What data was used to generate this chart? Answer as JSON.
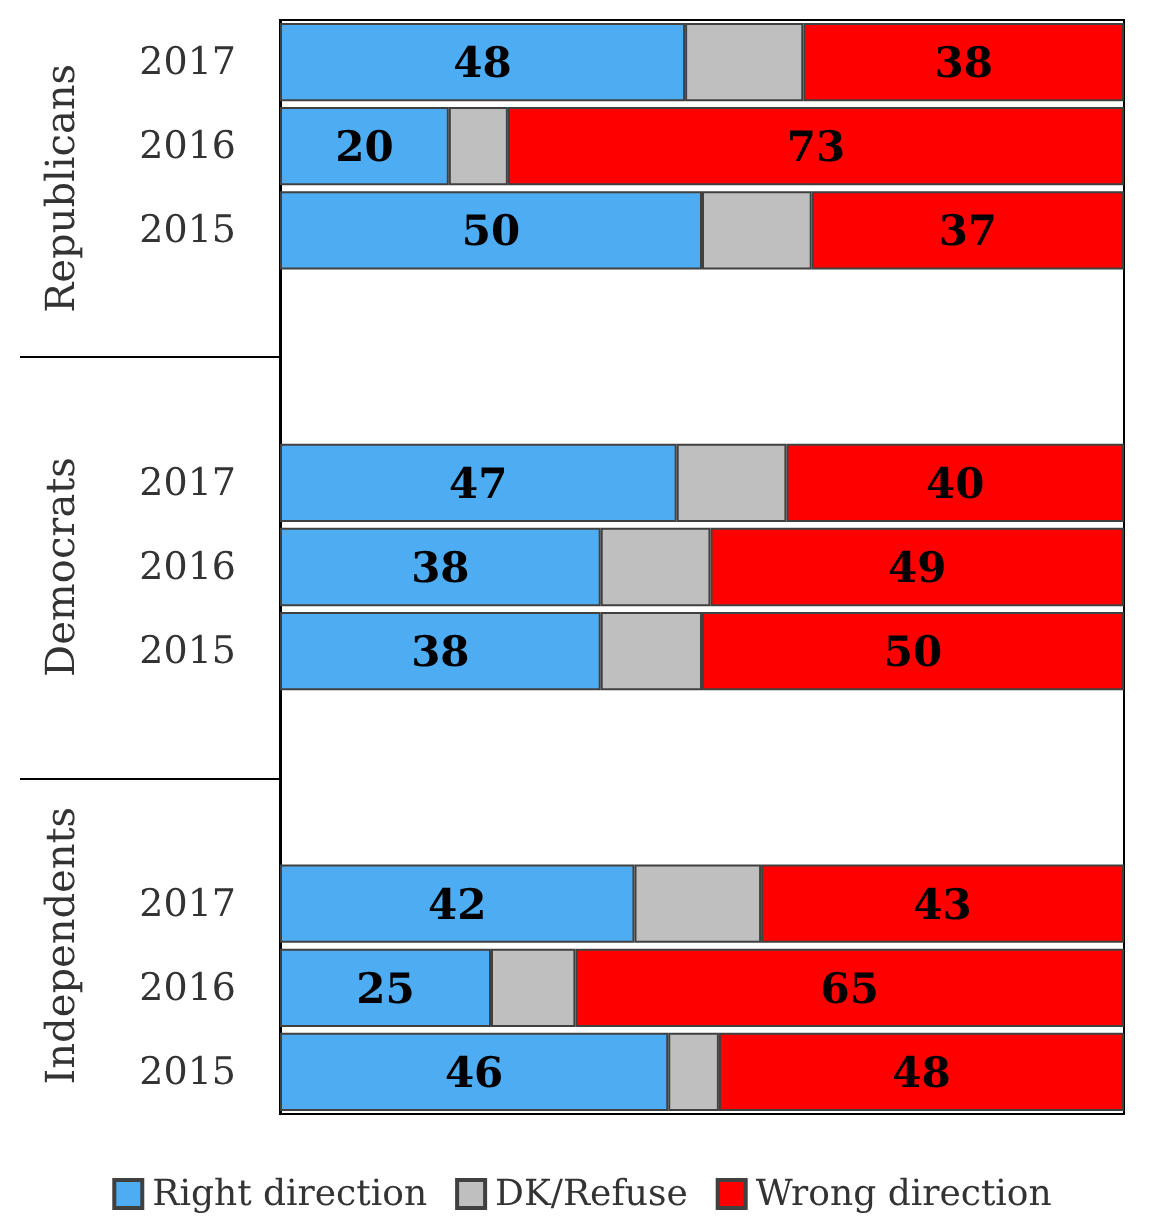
{
  "chart_data": {
    "type": "bar",
    "orientation": "horizontal",
    "stacked": true,
    "categories": [
      "2017",
      "2016",
      "2015",
      null,
      null,
      "2017",
      "2016",
      "2015",
      null,
      null,
      "2017",
      "2016",
      "2015"
    ],
    "series": [
      {
        "name": "Right direction",
        "color": "#4dacf2",
        "values": [
          48,
          20,
          50,
          null,
          null,
          47,
          38,
          38,
          null,
          null,
          42,
          25,
          46
        ],
        "value_labels": [
          "48",
          "20",
          "50",
          null,
          null,
          "47",
          "38",
          "38",
          null,
          null,
          "42",
          "25",
          "46"
        ]
      },
      {
        "name": "DK/Refuse",
        "color": "#bfbfbf",
        "values": [
          14,
          7,
          13,
          null,
          null,
          13,
          13,
          12,
          null,
          null,
          15,
          10,
          6
        ]
      },
      {
        "name": "Wrong direction",
        "color": "#ff0000",
        "values": [
          38,
          73,
          37,
          null,
          null,
          40,
          49,
          50,
          null,
          null,
          43,
          65,
          48
        ],
        "value_labels": [
          "38",
          "73",
          "37",
          null,
          null,
          "40",
          "49",
          "50",
          null,
          null,
          "43",
          "65",
          "48"
        ]
      }
    ],
    "annotations": [
      "Republicans",
      "Democrats",
      "Independents"
    ],
    "xlim": [
      0,
      100
    ],
    "tick_labels": "y",
    "grid": false,
    "legend": "bottom"
  }
}
